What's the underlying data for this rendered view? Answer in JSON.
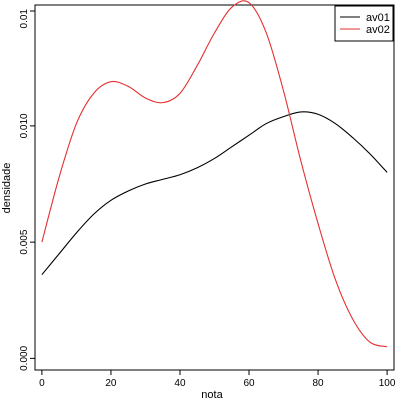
{
  "chart_data": {
    "type": "line",
    "title": "",
    "xlabel": "nota",
    "ylabel": "densidade",
    "xlim": [
      -2,
      102
    ],
    "ylim": [
      -0.0005,
      0.0152
    ],
    "xticks": [
      0,
      20,
      40,
      60,
      80,
      100
    ],
    "yticks": [
      0.0,
      0.005,
      0.01
    ],
    "yticklabels": [
      "0.000",
      "0.005",
      "0.010"
    ],
    "top_label": "0.01",
    "grid": false,
    "legend_position": "top-right",
    "series": [
      {
        "name": "av01",
        "color": "#000000",
        "x": [
          0,
          5,
          10,
          15,
          20,
          25,
          30,
          35,
          40,
          45,
          50,
          55,
          60,
          65,
          70,
          75,
          80,
          85,
          90,
          95,
          100
        ],
        "y": [
          0.0036,
          0.0045,
          0.0054,
          0.0062,
          0.0068,
          0.0072,
          0.0075,
          0.0077,
          0.0079,
          0.0082,
          0.0086,
          0.0091,
          0.0096,
          0.0101,
          0.0104,
          0.0106,
          0.0105,
          0.0101,
          0.0095,
          0.0088,
          0.008
        ]
      },
      {
        "name": "av02",
        "color": "#e53030",
        "x": [
          0,
          5,
          10,
          15,
          20,
          25,
          30,
          35,
          40,
          45,
          50,
          55,
          60,
          65,
          70,
          75,
          80,
          85,
          90,
          95,
          100
        ],
        "y": [
          0.005,
          0.0078,
          0.0101,
          0.0114,
          0.0119,
          0.0117,
          0.0112,
          0.011,
          0.0114,
          0.0126,
          0.014,
          0.0151,
          0.0153,
          0.014,
          0.0115,
          0.0085,
          0.0058,
          0.0034,
          0.0017,
          0.0007,
          0.0005
        ]
      }
    ]
  }
}
